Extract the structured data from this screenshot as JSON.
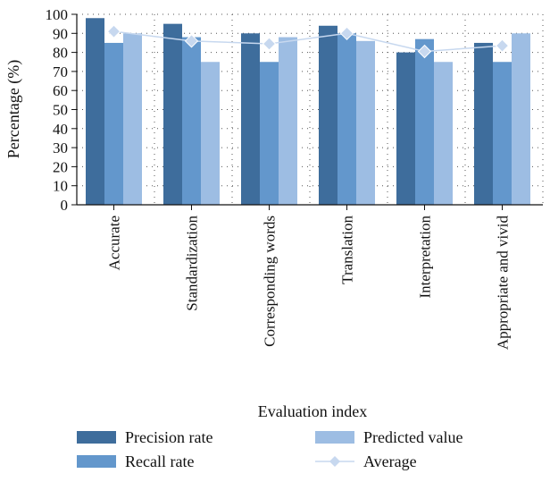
{
  "chart_data": {
    "type": "bar",
    "categories": [
      "Accurate",
      "Standardization",
      "Corresponding words",
      "Translation",
      "Interpretation",
      "Appropriate and vivid"
    ],
    "series": [
      {
        "name": "Precision rate",
        "kind": "bar",
        "color": "#3e6d9c",
        "values": [
          98,
          95,
          90,
          94,
          80,
          85
        ]
      },
      {
        "name": "Recall rate",
        "kind": "bar",
        "color": "#6397cc",
        "values": [
          85,
          88,
          75,
          90,
          87,
          75
        ]
      },
      {
        "name": "Predicted value",
        "kind": "bar",
        "color": "#9dbde3",
        "values": [
          90,
          75,
          88,
          86,
          75,
          90
        ]
      },
      {
        "name": "Average",
        "kind": "line",
        "color": "#c7d8ef",
        "values": [
          91,
          86,
          84.5,
          90,
          80.5,
          83.5
        ]
      }
    ],
    "title": "",
    "xlabel": "Evaluation index",
    "ylabel": "Percentage (%)",
    "ylim": [
      0,
      100
    ],
    "yticks": [
      0,
      10,
      20,
      30,
      40,
      50,
      60,
      70,
      80,
      90,
      100
    ],
    "grid": "dotted",
    "legend_position": "bottom"
  }
}
